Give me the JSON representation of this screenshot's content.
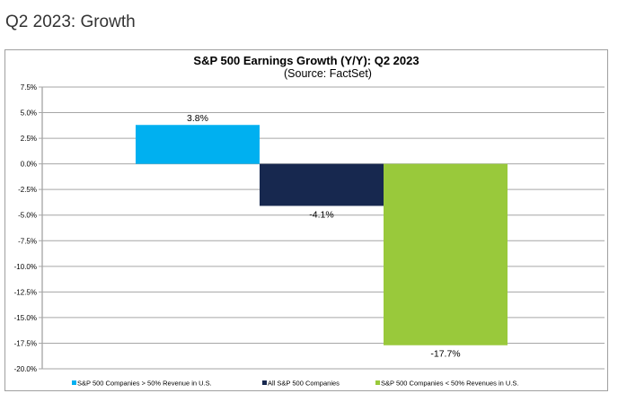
{
  "page": {
    "heading": "Q2 2023: Growth"
  },
  "chart_data": {
    "type": "bar",
    "title": "S&P 500 Earnings Growth (Y/Y): Q2 2023",
    "subtitle": "(Source: FactSet)",
    "xlabel": "",
    "ylabel": "",
    "ylim": [
      -20,
      7.5
    ],
    "yticks": [
      "7.5%",
      "5.0%",
      "2.5%",
      "0.0%",
      "-2.5%",
      "-5.0%",
      "-7.5%",
      "-10.0%",
      "-12.5%",
      "-15.0%",
      "-17.5%",
      "-20.0%"
    ],
    "grid": true,
    "legend_position": "bottom",
    "series": [
      {
        "name": "S&P 500 Companies > 50% Revenue in U.S.",
        "value": 3.8,
        "label": "3.8%",
        "color": "#00b0f0"
      },
      {
        "name": "All S&P 500 Companies",
        "value": -4.1,
        "label": "-4.1%",
        "color": "#17284f"
      },
      {
        "name": "S&P 500 Companies < 50% Revenues in U.S.",
        "value": -17.7,
        "label": "-17.7%",
        "color": "#99c93b"
      }
    ]
  }
}
